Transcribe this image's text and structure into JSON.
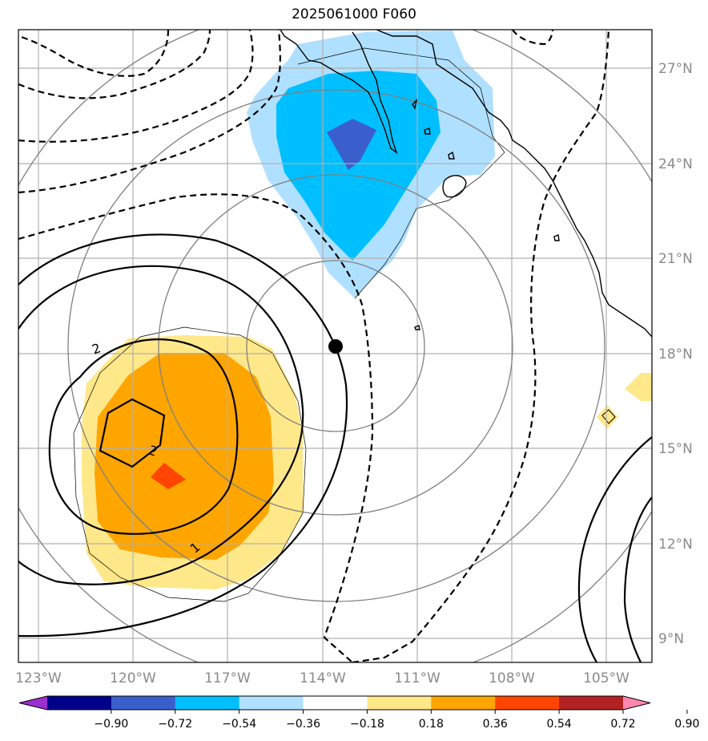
{
  "title": "2025061000 F060",
  "axes": {
    "lat_labels": [
      "27°N",
      "24°N",
      "21°N",
      "18°N",
      "15°N",
      "12°N",
      "9°N"
    ],
    "lon_labels": [
      "123°W",
      "120°W",
      "117°W",
      "114°W",
      "111°W",
      "108°W",
      "105°W"
    ]
  },
  "colorbar": {
    "ticks": [
      "−0.90",
      "−0.72",
      "−0.54",
      "−0.36",
      "−0.18",
      "0.18",
      "0.36",
      "0.54",
      "0.72",
      "0.90"
    ],
    "colors": [
      "#9b30d0",
      "#00008b",
      "#3a5fcd",
      "#00bfff",
      "#b0e0ff",
      "#ffffff",
      "#ffe88a",
      "#ffa500",
      "#ff4500",
      "#b22222",
      "#ff88b0"
    ]
  },
  "contours": {
    "positive_labels": [
      "2",
      "2",
      "1"
    ]
  },
  "storm_center": {
    "lat": 18.2,
    "lon": 113.6
  }
}
